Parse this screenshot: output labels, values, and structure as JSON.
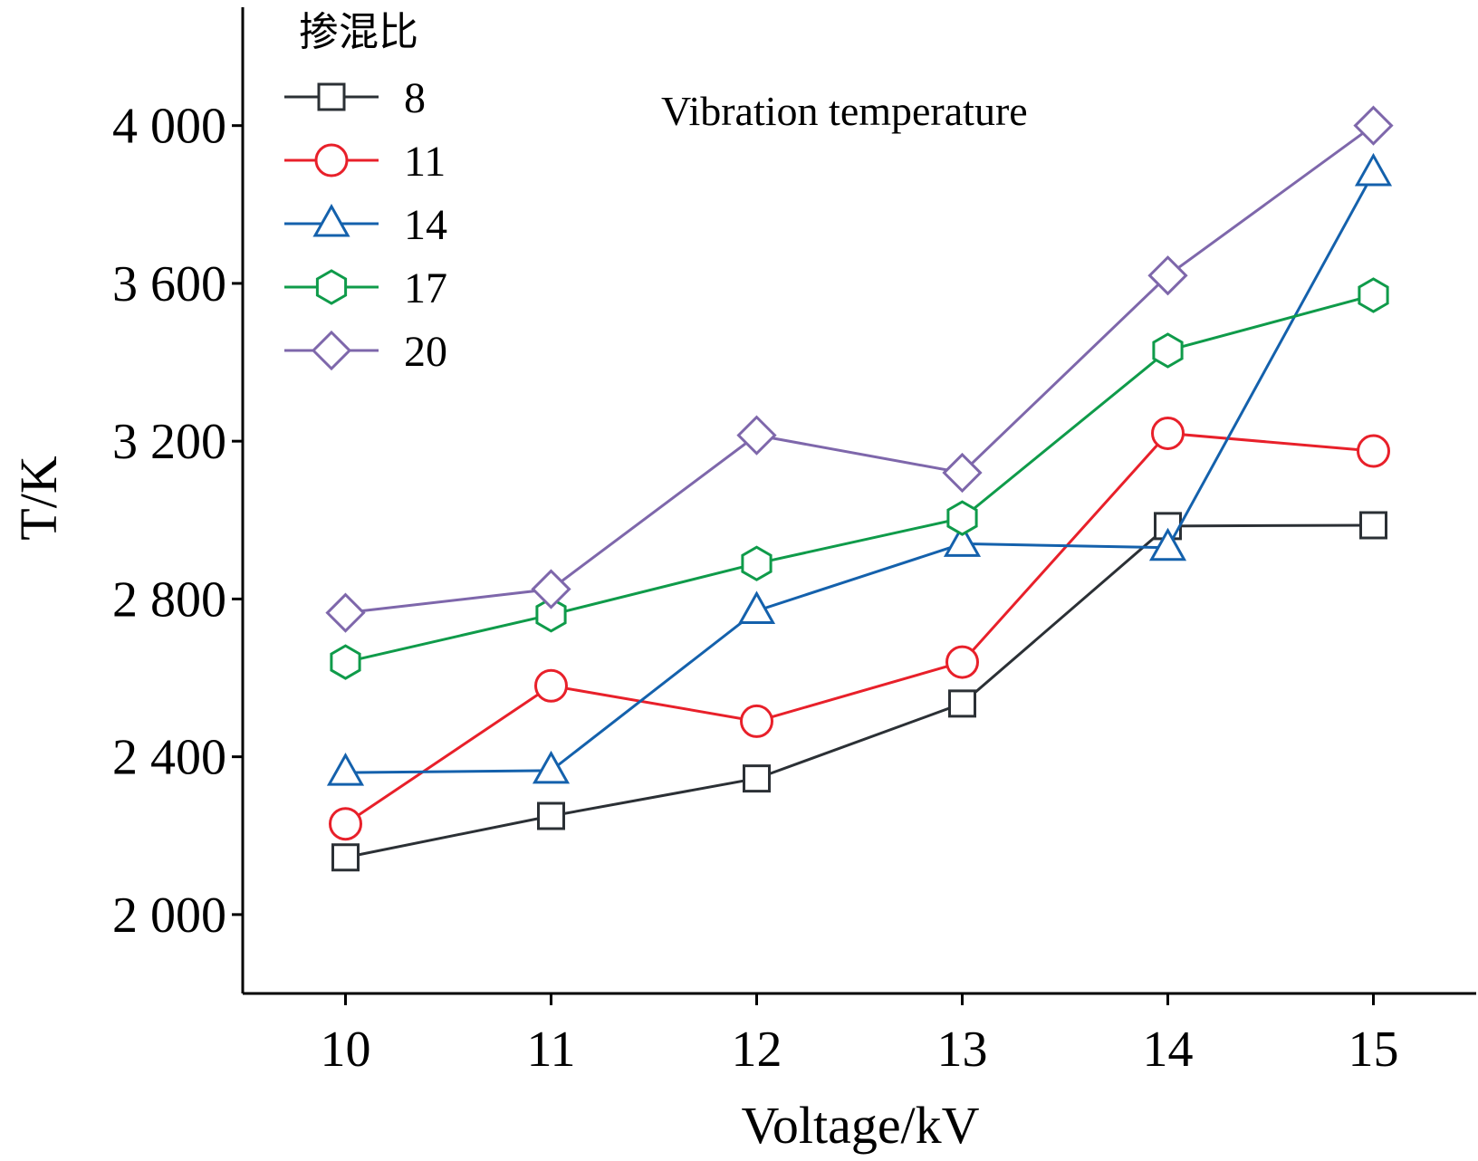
{
  "chart_data": {
    "type": "line",
    "annotation": "Vibration temperature",
    "xlabel": "Voltage/kV",
    "ylabel": "T/K",
    "x": [
      10,
      11,
      12,
      13,
      14,
      15
    ],
    "x_tick_labels": [
      "10",
      "11",
      "12",
      "13",
      "14",
      "15"
    ],
    "y_ticks": [
      2000,
      2400,
      2800,
      3200,
      3600,
      4000
    ],
    "y_tick_labels": [
      "2 000",
      "2 400",
      "2 800",
      "3 200",
      "3 600",
      "4 000"
    ],
    "ylim": [
      1800,
      4300
    ],
    "xlim": [
      9.5,
      15.5
    ],
    "legend_title": "掺混比",
    "legend_position": "top-left",
    "grid": false,
    "series": [
      {
        "name": "8",
        "marker": "square",
        "color": "#2b3035",
        "values": [
          2145,
          2250,
          2345,
          2535,
          2985,
          2987
        ]
      },
      {
        "name": "11",
        "marker": "circle",
        "color": "#e8202a",
        "values": [
          2230,
          2580,
          2490,
          2640,
          3220,
          3175
        ]
      },
      {
        "name": "14",
        "marker": "triangle",
        "color": "#1461ac",
        "values": [
          2360,
          2365,
          2770,
          2940,
          2930,
          3880
        ]
      },
      {
        "name": "17",
        "marker": "hexagon",
        "color": "#0f9b4a",
        "values": [
          2640,
          2760,
          2890,
          3005,
          3430,
          3570
        ]
      },
      {
        "name": "20",
        "marker": "diamond",
        "color": "#7e67ab",
        "values": [
          2765,
          2825,
          3215,
          3120,
          3620,
          4000
        ]
      }
    ]
  }
}
